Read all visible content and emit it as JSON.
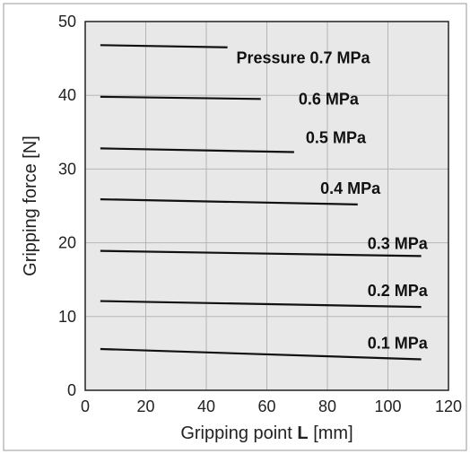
{
  "chart_data": {
    "type": "line",
    "title": "",
    "xlabel_prefix": "Gripping point ",
    "xlabel_bold": "L",
    "xlabel_suffix": " [mm]",
    "ylabel": "Gripping force [N]",
    "xlim": [
      0,
      120
    ],
    "ylim": [
      0,
      50
    ],
    "xticks": [
      0,
      20,
      40,
      60,
      80,
      100,
      120
    ],
    "yticks": [
      0,
      10,
      20,
      30,
      40,
      50
    ],
    "grid": true,
    "series": [
      {
        "name": "Pressure 0.7 MPa",
        "x": [
          5,
          47
        ],
        "y": [
          46.8,
          46.5
        ]
      },
      {
        "name": "0.6 MPa",
        "x": [
          5,
          58
        ],
        "y": [
          39.8,
          39.5
        ]
      },
      {
        "name": "0.5 MPa",
        "x": [
          5,
          69
        ],
        "y": [
          32.8,
          32.3
        ]
      },
      {
        "name": "0.4 MPa",
        "x": [
          5,
          90
        ],
        "y": [
          25.9,
          25.2
        ]
      },
      {
        "name": "0.3 MPa",
        "x": [
          5,
          111
        ],
        "y": [
          18.9,
          18.2
        ]
      },
      {
        "name": "0.2 MPa",
        "x": [
          5,
          111
        ],
        "y": [
          12.1,
          11.3
        ]
      },
      {
        "name": "0.1 MPa",
        "x": [
          5,
          111
        ],
        "y": [
          5.6,
          4.2
        ]
      }
    ]
  },
  "colors": {
    "plot_bg": "#e8e8e8",
    "grid": "#b5b5b5",
    "line": "#111111",
    "frame": "#222222"
  }
}
